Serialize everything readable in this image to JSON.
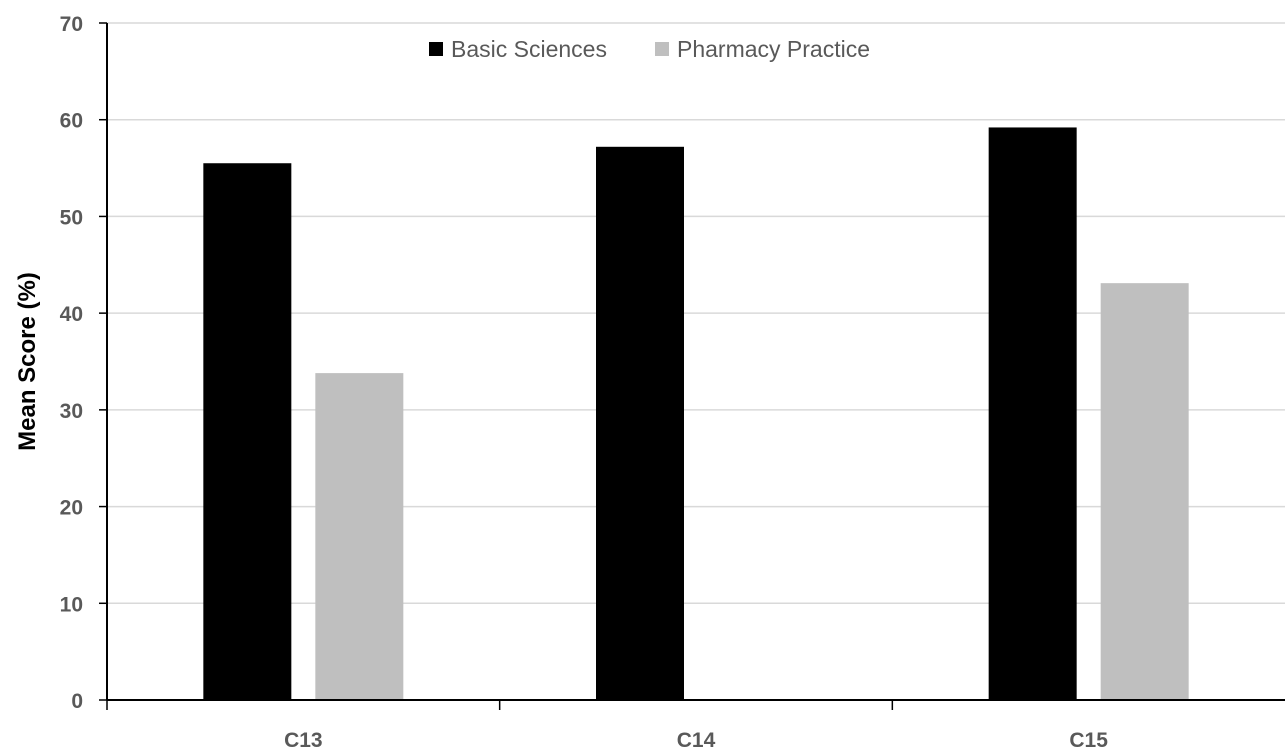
{
  "chart_data": {
    "type": "bar",
    "title": "",
    "xlabel": "",
    "ylabel": "Mean Score (%)",
    "ylim": [
      0,
      70
    ],
    "yticks": [
      0,
      10,
      20,
      30,
      40,
      50,
      60,
      70
    ],
    "grid": true,
    "legend_position": "top",
    "categories": [
      "C13",
      "C14",
      "C15"
    ],
    "series": [
      {
        "name": "Basic Sciences",
        "color": "#000000",
        "values": [
          55.5,
          57.2,
          59.2
        ]
      },
      {
        "name": "Pharmacy Practice",
        "color": "#bfbfbf",
        "values": [
          33.8,
          null,
          43.1
        ]
      }
    ]
  }
}
